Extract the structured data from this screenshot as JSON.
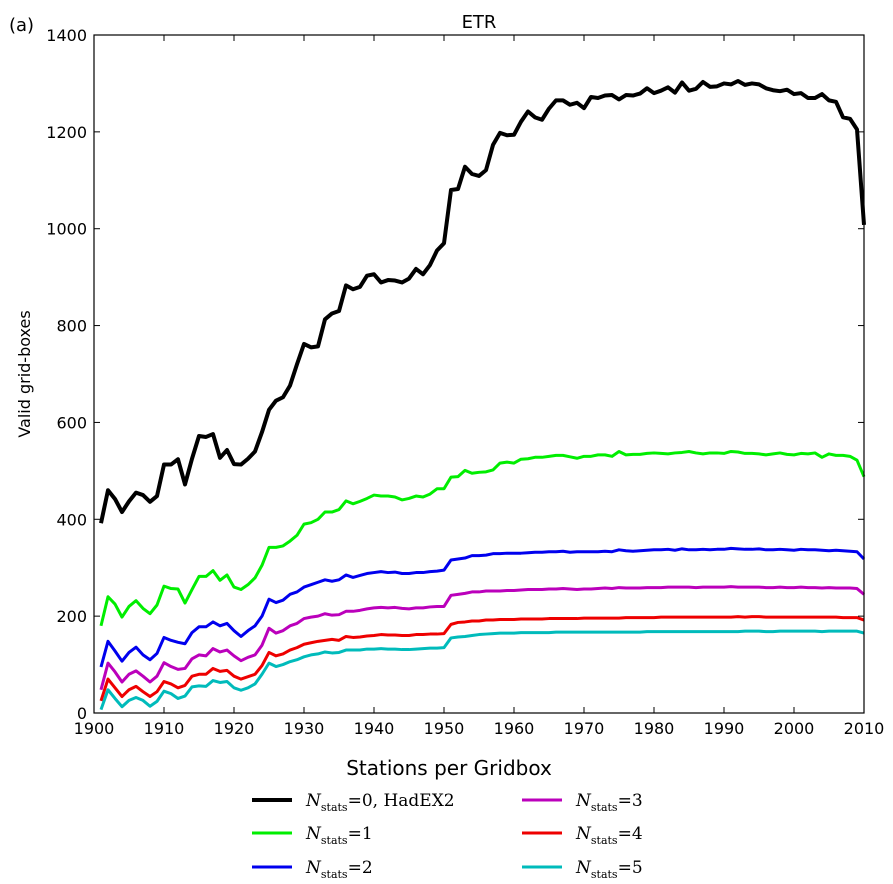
{
  "panel_label": "(a)",
  "legend_title": "Stations per Gridbox",
  "chart_data": {
    "type": "line",
    "title": "ETR",
    "xlabel": "",
    "ylabel": "Valid grid-boxes",
    "xlim": [
      1900,
      2010
    ],
    "ylim": [
      0,
      1400
    ],
    "xticks": [
      1900,
      1910,
      1920,
      1930,
      1940,
      1950,
      1960,
      1970,
      1980,
      1990,
      2000,
      2010
    ],
    "yticks": [
      0,
      200,
      400,
      600,
      800,
      1000,
      1200,
      1400
    ],
    "grid": false,
    "legend_position": "below",
    "x": [
      1901,
      1902,
      1903,
      1904,
      1905,
      1906,
      1907,
      1908,
      1909,
      1910,
      1911,
      1912,
      1913,
      1914,
      1915,
      1916,
      1917,
      1918,
      1919,
      1920,
      1921,
      1922,
      1923,
      1924,
      1925,
      1926,
      1927,
      1928,
      1929,
      1930,
      1931,
      1932,
      1933,
      1934,
      1935,
      1936,
      1937,
      1938,
      1939,
      1940,
      1941,
      1942,
      1943,
      1944,
      1945,
      1946,
      1947,
      1948,
      1949,
      1950,
      1951,
      1952,
      1953,
      1954,
      1955,
      1956,
      1957,
      1958,
      1959,
      1960,
      1961,
      1962,
      1963,
      1964,
      1965,
      1966,
      1967,
      1968,
      1969,
      1970,
      1971,
      1972,
      1973,
      1974,
      1975,
      1976,
      1977,
      1978,
      1979,
      1980,
      1981,
      1982,
      1983,
      1984,
      1985,
      1986,
      1987,
      1988,
      1989,
      1990,
      1991,
      1992,
      1993,
      1994,
      1995,
      1996,
      1997,
      1998,
      1999,
      2000,
      2001,
      2002,
      2003,
      2004,
      2005,
      2006,
      2007,
      2008,
      2009,
      2010
    ],
    "series": [
      {
        "name_prefix": "N",
        "name_sub": "stats",
        "name_suffix": "=0, HadEX2",
        "color": "#000000",
        "values": [
          392,
          460,
          442,
          415,
          437,
          455,
          450,
          436,
          448,
          513,
          513,
          524,
          472,
          525,
          572,
          570,
          576,
          527,
          543,
          514,
          513,
          525,
          540,
          580,
          626,
          645,
          652,
          676,
          720,
          762,
          755,
          757,
          813,
          825,
          830,
          883,
          875,
          880,
          903,
          906,
          889,
          894,
          893,
          889,
          897,
          917,
          906,
          925,
          955,
          970,
          1080,
          1082,
          1128,
          1113,
          1109,
          1121,
          1173,
          1198,
          1193,
          1194,
          1221,
          1242,
          1230,
          1225,
          1248,
          1265,
          1265,
          1256,
          1260,
          1249,
          1272,
          1270,
          1275,
          1276,
          1267,
          1276,
          1275,
          1279,
          1290,
          1280,
          1285,
          1292,
          1281,
          1302,
          1285,
          1289,
          1303,
          1293,
          1294,
          1300,
          1298,
          1305,
          1297,
          1300,
          1298,
          1290,
          1286,
          1284,
          1287,
          1278,
          1280,
          1270,
          1270,
          1278,
          1265,
          1262,
          1230,
          1227,
          1205,
          1008
        ]
      },
      {
        "name_prefix": "N",
        "name_sub": "stats",
        "name_suffix": "=1",
        "color": "#00ee00",
        "values": [
          180,
          240,
          225,
          198,
          220,
          232,
          216,
          205,
          223,
          262,
          257,
          256,
          227,
          255,
          282,
          282,
          294,
          274,
          285,
          260,
          255,
          265,
          279,
          305,
          342,
          342,
          345,
          355,
          367,
          390,
          393,
          400,
          415,
          415,
          420,
          438,
          432,
          437,
          443,
          450,
          448,
          448,
          446,
          440,
          443,
          448,
          446,
          452,
          463,
          463,
          487,
          488,
          501,
          495,
          497,
          498,
          502,
          516,
          518,
          516,
          524,
          525,
          528,
          528,
          530,
          532,
          532,
          529,
          526,
          530,
          530,
          533,
          533,
          530,
          540,
          533,
          534,
          534,
          536,
          537,
          536,
          535,
          537,
          538,
          540,
          537,
          535,
          537,
          537,
          536,
          540,
          539,
          536,
          536,
          535,
          533,
          535,
          537,
          534,
          533,
          536,
          535,
          537,
          528,
          535,
          532,
          532,
          530,
          522,
          488
        ]
      },
      {
        "name_prefix": "N",
        "name_sub": "stats",
        "name_suffix": "=2",
        "color": "#0000ee",
        "values": [
          95,
          148,
          128,
          107,
          125,
          136,
          120,
          110,
          123,
          156,
          150,
          146,
          143,
          166,
          178,
          178,
          188,
          180,
          185,
          170,
          158,
          170,
          180,
          200,
          235,
          228,
          233,
          245,
          250,
          260,
          265,
          270,
          275,
          272,
          275,
          285,
          280,
          284,
          288,
          290,
          292,
          290,
          291,
          288,
          288,
          290,
          290,
          292,
          293,
          295,
          316,
          318,
          320,
          325,
          325,
          326,
          329,
          329,
          330,
          330,
          330,
          331,
          332,
          332,
          333,
          333,
          334,
          332,
          333,
          333,
          333,
          333,
          334,
          333,
          337,
          335,
          334,
          335,
          336,
          337,
          337,
          338,
          336,
          339,
          337,
          337,
          338,
          337,
          338,
          338,
          340,
          339,
          338,
          338,
          339,
          337,
          337,
          338,
          337,
          336,
          338,
          337,
          337,
          336,
          335,
          336,
          335,
          334,
          333,
          318
        ]
      },
      {
        "name_prefix": "N",
        "name_sub": "stats",
        "name_suffix": "=3",
        "color": "#bb00bb",
        "values": [
          48,
          103,
          85,
          64,
          80,
          87,
          76,
          64,
          76,
          104,
          96,
          90,
          92,
          112,
          120,
          118,
          133,
          126,
          130,
          118,
          108,
          115,
          120,
          140,
          175,
          165,
          170,
          180,
          185,
          195,
          198,
          200,
          205,
          202,
          203,
          210,
          210,
          212,
          215,
          217,
          218,
          217,
          218,
          216,
          215,
          217,
          217,
          219,
          220,
          220,
          243,
          245,
          247,
          250,
          250,
          252,
          252,
          252,
          253,
          253,
          254,
          255,
          255,
          255,
          256,
          256,
          257,
          256,
          255,
          256,
          256,
          257,
          258,
          257,
          259,
          258,
          258,
          258,
          259,
          259,
          259,
          260,
          260,
          260,
          260,
          259,
          260,
          260,
          260,
          260,
          261,
          260,
          260,
          260,
          260,
          259,
          259,
          260,
          259,
          259,
          260,
          259,
          259,
          258,
          259,
          258,
          258,
          258,
          257,
          245
        ]
      },
      {
        "name_prefix": "N",
        "name_sub": "stats",
        "name_suffix": "=4",
        "color": "#ee0000",
        "values": [
          25,
          70,
          52,
          34,
          48,
          55,
          44,
          34,
          44,
          65,
          60,
          52,
          57,
          76,
          80,
          80,
          92,
          86,
          88,
          76,
          70,
          75,
          80,
          98,
          125,
          118,
          122,
          130,
          135,
          142,
          145,
          148,
          150,
          152,
          150,
          158,
          156,
          157,
          159,
          160,
          162,
          161,
          161,
          160,
          160,
          162,
          162,
          163,
          163,
          164,
          183,
          187,
          188,
          190,
          190,
          192,
          192,
          193,
          193,
          193,
          194,
          194,
          194,
          194,
          195,
          195,
          195,
          195,
          195,
          196,
          196,
          196,
          196,
          196,
          196,
          197,
          197,
          197,
          197,
          197,
          198,
          198,
          198,
          198,
          198,
          198,
          198,
          198,
          198,
          198,
          198,
          199,
          198,
          199,
          199,
          198,
          198,
          198,
          198,
          198,
          198,
          198,
          198,
          198,
          198,
          198,
          197,
          197,
          197,
          192
        ]
      },
      {
        "name_prefix": "N",
        "name_sub": "stats",
        "name_suffix": "=5",
        "color": "#00bbbb",
        "values": [
          7,
          48,
          30,
          13,
          26,
          32,
          26,
          14,
          24,
          45,
          40,
          30,
          35,
          54,
          56,
          55,
          67,
          63,
          65,
          52,
          47,
          52,
          60,
          80,
          103,
          96,
          100,
          106,
          110,
          116,
          120,
          122,
          126,
          124,
          125,
          130,
          130,
          130,
          132,
          132,
          133,
          132,
          132,
          131,
          131,
          132,
          133,
          134,
          134,
          135,
          155,
          157,
          158,
          160,
          162,
          163,
          164,
          165,
          165,
          165,
          166,
          166,
          166,
          166,
          166,
          167,
          167,
          167,
          167,
          167,
          167,
          167,
          167,
          167,
          167,
          167,
          167,
          167,
          168,
          168,
          168,
          168,
          168,
          168,
          168,
          168,
          168,
          168,
          168,
          168,
          168,
          168,
          169,
          169,
          169,
          168,
          168,
          169,
          169,
          169,
          169,
          169,
          169,
          168,
          169,
          169,
          169,
          169,
          169,
          165
        ]
      }
    ]
  }
}
